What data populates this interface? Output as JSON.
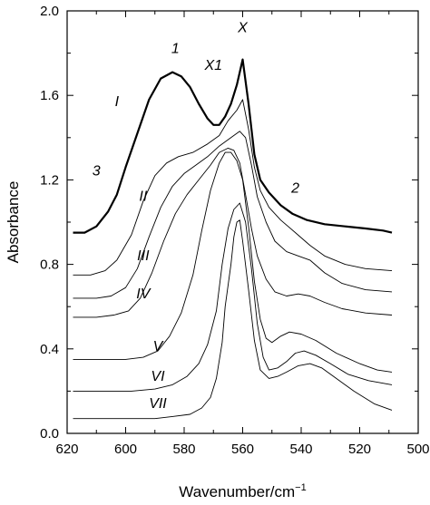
{
  "chart_data": {
    "type": "line",
    "xlabel_text": "Wavenumber/cm",
    "xlabel_sup": "−1",
    "ylabel": "Absorbance",
    "xlim": [
      620,
      500
    ],
    "ylim": [
      0.0,
      2.0
    ],
    "x_ticks": [
      620,
      600,
      580,
      560,
      540,
      520,
      500
    ],
    "y_ticks": [
      0.0,
      0.4,
      0.8,
      1.2,
      1.6,
      2.0
    ],
    "y_tick_labels": [
      "0.0",
      "0.4",
      "0.8",
      "1.2",
      "1.6",
      "2.0"
    ],
    "series": [
      {
        "name": "I",
        "points": [
          [
            618,
            0.95
          ],
          [
            614,
            0.95
          ],
          [
            610,
            0.98
          ],
          [
            606,
            1.05
          ],
          [
            603,
            1.13
          ],
          [
            600,
            1.26
          ],
          [
            596,
            1.42
          ],
          [
            592,
            1.58
          ],
          [
            588,
            1.68
          ],
          [
            584,
            1.71
          ],
          [
            581,
            1.69
          ],
          [
            578,
            1.64
          ],
          [
            575,
            1.56
          ],
          [
            572,
            1.49
          ],
          [
            570,
            1.46
          ],
          [
            568,
            1.46
          ],
          [
            566,
            1.5
          ],
          [
            564,
            1.56
          ],
          [
            562,
            1.65
          ],
          [
            560,
            1.77
          ],
          [
            558,
            1.56
          ],
          [
            556,
            1.32
          ],
          [
            554,
            1.2
          ],
          [
            551,
            1.14
          ],
          [
            547,
            1.08
          ],
          [
            543,
            1.04
          ],
          [
            538,
            1.01
          ],
          [
            532,
            0.99
          ],
          [
            525,
            0.98
          ],
          [
            518,
            0.97
          ],
          [
            512,
            0.96
          ],
          [
            509,
            0.95
          ]
        ]
      },
      {
        "name": "II",
        "points": [
          [
            618,
            0.75
          ],
          [
            612,
            0.75
          ],
          [
            607,
            0.77
          ],
          [
            603,
            0.82
          ],
          [
            598,
            0.94
          ],
          [
            594,
            1.1
          ],
          [
            590,
            1.22
          ],
          [
            586,
            1.28
          ],
          [
            582,
            1.31
          ],
          [
            577,
            1.33
          ],
          [
            572,
            1.37
          ],
          [
            568,
            1.41
          ],
          [
            565,
            1.48
          ],
          [
            562,
            1.53
          ],
          [
            560,
            1.58
          ],
          [
            558,
            1.44
          ],
          [
            556,
            1.26
          ],
          [
            554,
            1.15
          ],
          [
            551,
            1.07
          ],
          [
            547,
            1.01
          ],
          [
            542,
            0.95
          ],
          [
            537,
            0.89
          ],
          [
            532,
            0.84
          ],
          [
            525,
            0.8
          ],
          [
            518,
            0.78
          ],
          [
            509,
            0.77
          ]
        ]
      },
      {
        "name": "III",
        "points": [
          [
            618,
            0.64
          ],
          [
            610,
            0.64
          ],
          [
            605,
            0.65
          ],
          [
            600,
            0.69
          ],
          [
            596,
            0.78
          ],
          [
            592,
            0.93
          ],
          [
            588,
            1.07
          ],
          [
            584,
            1.17
          ],
          [
            580,
            1.23
          ],
          [
            576,
            1.27
          ],
          [
            572,
            1.31
          ],
          [
            568,
            1.36
          ],
          [
            564,
            1.4
          ],
          [
            561,
            1.43
          ],
          [
            559,
            1.4
          ],
          [
            557,
            1.27
          ],
          [
            555,
            1.12
          ],
          [
            552,
            1.0
          ],
          [
            549,
            0.91
          ],
          [
            545,
            0.86
          ],
          [
            541,
            0.84
          ],
          [
            537,
            0.82
          ],
          [
            532,
            0.76
          ],
          [
            526,
            0.71
          ],
          [
            518,
            0.68
          ],
          [
            509,
            0.67
          ]
        ]
      },
      {
        "name": "IV",
        "points": [
          [
            618,
            0.55
          ],
          [
            610,
            0.55
          ],
          [
            604,
            0.56
          ],
          [
            599,
            0.58
          ],
          [
            595,
            0.64
          ],
          [
            591,
            0.76
          ],
          [
            587,
            0.91
          ],
          [
            583,
            1.04
          ],
          [
            579,
            1.13
          ],
          [
            575,
            1.2
          ],
          [
            571,
            1.27
          ],
          [
            568,
            1.33
          ],
          [
            565,
            1.35
          ],
          [
            563,
            1.34
          ],
          [
            561,
            1.28
          ],
          [
            559,
            1.13
          ],
          [
            557,
            0.97
          ],
          [
            555,
            0.84
          ],
          [
            552,
            0.73
          ],
          [
            549,
            0.67
          ],
          [
            545,
            0.65
          ],
          [
            541,
            0.66
          ],
          [
            537,
            0.65
          ],
          [
            532,
            0.62
          ],
          [
            526,
            0.59
          ],
          [
            518,
            0.57
          ],
          [
            509,
            0.56
          ]
        ]
      },
      {
        "name": "V",
        "points": [
          [
            618,
            0.35
          ],
          [
            608,
            0.35
          ],
          [
            600,
            0.35
          ],
          [
            594,
            0.36
          ],
          [
            589,
            0.39
          ],
          [
            585,
            0.46
          ],
          [
            581,
            0.57
          ],
          [
            577,
            0.75
          ],
          [
            574,
            0.96
          ],
          [
            571,
            1.15
          ],
          [
            568,
            1.28
          ],
          [
            566,
            1.33
          ],
          [
            564,
            1.33
          ],
          [
            562,
            1.29
          ],
          [
            560,
            1.2
          ],
          [
            558,
            0.98
          ],
          [
            556,
            0.72
          ],
          [
            554,
            0.54
          ],
          [
            552,
            0.45
          ],
          [
            550,
            0.43
          ],
          [
            547,
            0.46
          ],
          [
            544,
            0.48
          ],
          [
            540,
            0.47
          ],
          [
            535,
            0.44
          ],
          [
            528,
            0.38
          ],
          [
            520,
            0.33
          ],
          [
            514,
            0.3
          ],
          [
            509,
            0.29
          ]
        ]
      },
      {
        "name": "VI",
        "points": [
          [
            618,
            0.2
          ],
          [
            608,
            0.2
          ],
          [
            598,
            0.2
          ],
          [
            590,
            0.21
          ],
          [
            584,
            0.23
          ],
          [
            579,
            0.27
          ],
          [
            575,
            0.33
          ],
          [
            572,
            0.42
          ],
          [
            569,
            0.58
          ],
          [
            567,
            0.8
          ],
          [
            565,
            0.97
          ],
          [
            563,
            1.06
          ],
          [
            561,
            1.09
          ],
          [
            559,
            1.0
          ],
          [
            557,
            0.78
          ],
          [
            555,
            0.52
          ],
          [
            553,
            0.36
          ],
          [
            551,
            0.3
          ],
          [
            548,
            0.31
          ],
          [
            545,
            0.34
          ],
          [
            542,
            0.38
          ],
          [
            539,
            0.39
          ],
          [
            535,
            0.37
          ],
          [
            530,
            0.33
          ],
          [
            524,
            0.28
          ],
          [
            517,
            0.25
          ],
          [
            509,
            0.23
          ]
        ]
      },
      {
        "name": "VII",
        "points": [
          [
            618,
            0.07
          ],
          [
            608,
            0.07
          ],
          [
            598,
            0.07
          ],
          [
            590,
            0.07
          ],
          [
            584,
            0.08
          ],
          [
            578,
            0.09
          ],
          [
            574,
            0.12
          ],
          [
            571,
            0.17
          ],
          [
            569,
            0.26
          ],
          [
            567,
            0.43
          ],
          [
            566,
            0.6
          ],
          [
            564,
            0.8
          ],
          [
            563,
            0.93
          ],
          [
            562,
            1.0
          ],
          [
            561,
            1.01
          ],
          [
            560,
            0.91
          ],
          [
            558,
            0.68
          ],
          [
            556,
            0.44
          ],
          [
            554,
            0.3
          ],
          [
            551,
            0.26
          ],
          [
            548,
            0.27
          ],
          [
            545,
            0.29
          ],
          [
            541,
            0.32
          ],
          [
            537,
            0.33
          ],
          [
            533,
            0.31
          ],
          [
            528,
            0.26
          ],
          [
            522,
            0.2
          ],
          [
            515,
            0.14
          ],
          [
            509,
            0.11
          ]
        ]
      }
    ],
    "annotations": [
      {
        "text": "I",
        "x": 603,
        "y": 1.55
      },
      {
        "text": "II",
        "x": 594,
        "y": 1.1
      },
      {
        "text": "III",
        "x": 594,
        "y": 0.82
      },
      {
        "text": "IV",
        "x": 594,
        "y": 0.64
      },
      {
        "text": "V",
        "x": 589,
        "y": 0.39
      },
      {
        "text": "VI",
        "x": 589,
        "y": 0.25
      },
      {
        "text": "VII",
        "x": 589,
        "y": 0.12
      },
      {
        "text": "1",
        "x": 583,
        "y": 1.8
      },
      {
        "text": "X",
        "x": 560,
        "y": 1.9
      },
      {
        "text": "X1",
        "x": 570,
        "y": 1.72
      },
      {
        "text": "2",
        "x": 542,
        "y": 1.14
      },
      {
        "text": "3",
        "x": 610,
        "y": 1.22
      }
    ]
  }
}
